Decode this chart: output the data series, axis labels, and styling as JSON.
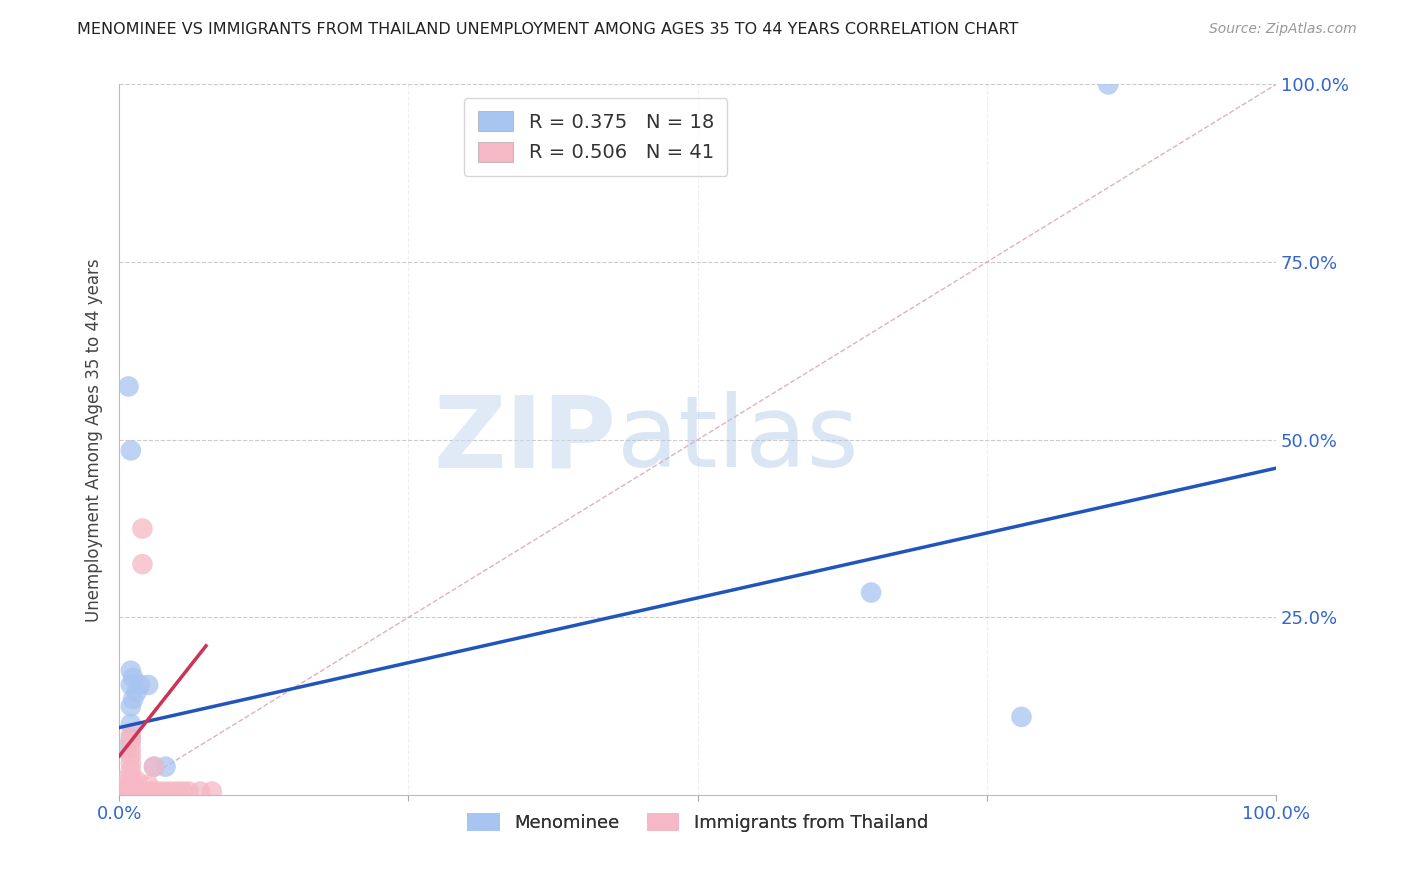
{
  "title": "MENOMINEE VS IMMIGRANTS FROM THAILAND UNEMPLOYMENT AMONG AGES 35 TO 44 YEARS CORRELATION CHART",
  "source": "Source: ZipAtlas.com",
  "ylabel": "Unemployment Among Ages 35 to 44 years",
  "xlim": [
    0,
    1
  ],
  "ylim": [
    0,
    1
  ],
  "watermark_zip": "ZIP",
  "watermark_atlas": "atlas",
  "legend_blue_R": "0.375",
  "legend_blue_N": "18",
  "legend_pink_R": "0.506",
  "legend_pink_N": "41",
  "blue_color": "#A8C4F0",
  "pink_color": "#F5B8C4",
  "blue_line_color": "#2255BB",
  "pink_line_color": "#CC3355",
  "diagonal_color": "#DDAAB0",
  "grid_color": "#CCCCCC",
  "menominee_points": [
    [
      0.008,
      0.575
    ],
    [
      0.01,
      0.485
    ],
    [
      0.01,
      0.175
    ],
    [
      0.012,
      0.165
    ],
    [
      0.01,
      0.155
    ],
    [
      0.015,
      0.145
    ],
    [
      0.012,
      0.135
    ],
    [
      0.01,
      0.125
    ],
    [
      0.018,
      0.155
    ],
    [
      0.025,
      0.155
    ],
    [
      0.03,
      0.04
    ],
    [
      0.04,
      0.04
    ],
    [
      0.01,
      0.1
    ],
    [
      0.01,
      0.08
    ],
    [
      0.005,
      0.065
    ],
    [
      0.65,
      0.285
    ],
    [
      0.78,
      0.11
    ],
    [
      0.855,
      1.0
    ]
  ],
  "thailand_points": [
    [
      0.0,
      0.02
    ],
    [
      0.0,
      0.01
    ],
    [
      0.002,
      0.005
    ],
    [
      0.003,
      0.005
    ],
    [
      0.005,
      0.005
    ],
    [
      0.006,
      0.005
    ],
    [
      0.007,
      0.005
    ],
    [
      0.008,
      0.005
    ],
    [
      0.009,
      0.005
    ],
    [
      0.01,
      0.005
    ],
    [
      0.01,
      0.015
    ],
    [
      0.01,
      0.025
    ],
    [
      0.01,
      0.035
    ],
    [
      0.01,
      0.045
    ],
    [
      0.01,
      0.055
    ],
    [
      0.01,
      0.065
    ],
    [
      0.01,
      0.075
    ],
    [
      0.01,
      0.085
    ],
    [
      0.012,
      0.005
    ],
    [
      0.013,
      0.005
    ],
    [
      0.014,
      0.005
    ],
    [
      0.015,
      0.005
    ],
    [
      0.015,
      0.02
    ],
    [
      0.016,
      0.005
    ],
    [
      0.017,
      0.005
    ],
    [
      0.018,
      0.005
    ],
    [
      0.02,
      0.005
    ],
    [
      0.02,
      0.325
    ],
    [
      0.02,
      0.375
    ],
    [
      0.025,
      0.005
    ],
    [
      0.025,
      0.015
    ],
    [
      0.03,
      0.005
    ],
    [
      0.03,
      0.04
    ],
    [
      0.035,
      0.005
    ],
    [
      0.04,
      0.005
    ],
    [
      0.045,
      0.005
    ],
    [
      0.05,
      0.005
    ],
    [
      0.055,
      0.005
    ],
    [
      0.06,
      0.005
    ],
    [
      0.07,
      0.005
    ],
    [
      0.08,
      0.005
    ]
  ],
  "blue_trendline_x": [
    0.0,
    1.0
  ],
  "blue_trendline_y": [
    0.095,
    0.46
  ],
  "pink_trendline_x": [
    0.0,
    0.075
  ],
  "pink_trendline_y": [
    0.055,
    0.21
  ]
}
